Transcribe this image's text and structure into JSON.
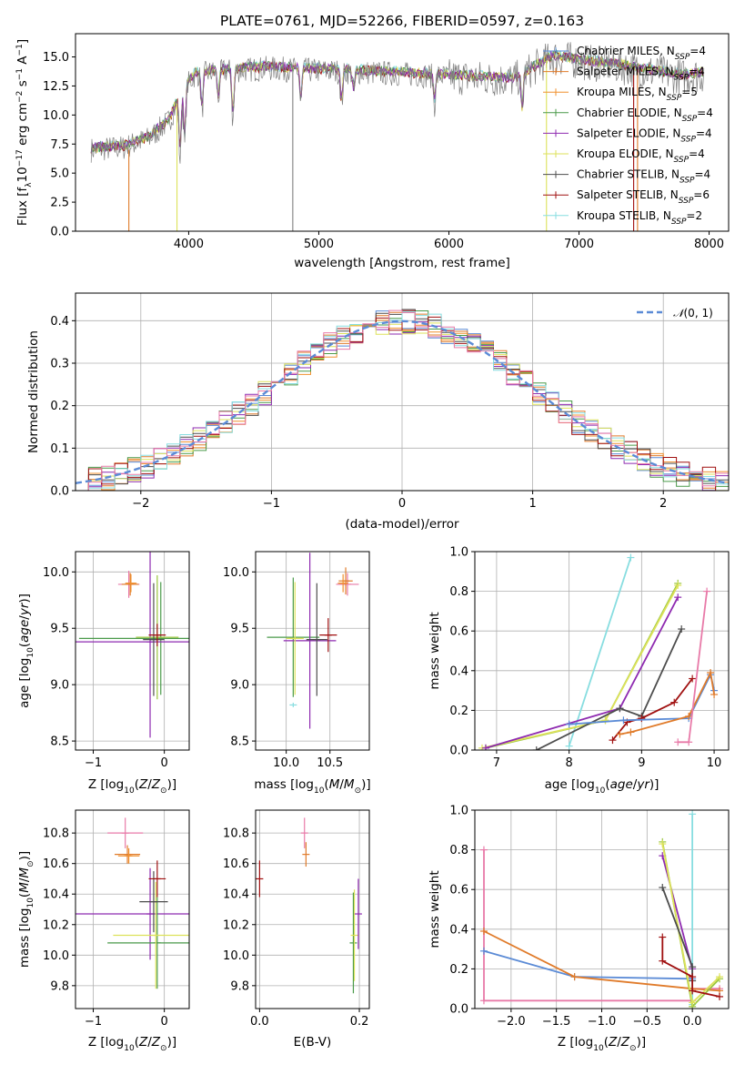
{
  "colors": {
    "chabrier_miles": "#5b8bd6",
    "salpeter_miles": "#e07b2a",
    "kroupa_miles": "#f0902e",
    "chabrier_elodie": "#4a9a4a",
    "salpeter_elodie": "#8e2ab0",
    "kroupa_elodie": "#dde25a",
    "chabrier_stelib": "#4d4d4d",
    "salpeter_stelib": "#a01010",
    "kroupa_stelib": "#87dde0",
    "pink": "#e87aa8",
    "green2": "#9ac63e",
    "data": "#7f7f7f"
  },
  "chart_data": [
    {
      "id": "spectrum",
      "type": "line",
      "title": "PLATE=0761, MJD=52266, FIBERID=0597, z=0.163",
      "xlabel": "wavelength [Angstrom, rest frame]",
      "ylabel": "Flux [f_λ 10^-17 erg cm^-2 s^-1 A^-1]",
      "xlim": [
        3130,
        8150
      ],
      "ylim": [
        0,
        17
      ],
      "xticks": [
        4000,
        5000,
        6000,
        7000,
        8000
      ],
      "yticks": [
        0.0,
        2.5,
        5.0,
        7.5,
        10.0,
        12.5,
        15.0
      ],
      "legend": [
        {
          "label": "Chabrier MILES, N_SSP=4",
          "color": "#5b8bd6"
        },
        {
          "label": "Salpeter MILES, N_SSP=4",
          "color": "#e07b2a"
        },
        {
          "label": "Kroupa MILES, N_SSP=5",
          "color": "#f0902e"
        },
        {
          "label": "Chabrier ELODIE, N_SSP=4",
          "color": "#4a9a4a"
        },
        {
          "label": "Salpeter ELODIE, N_SSP=4",
          "color": "#8e2ab0"
        },
        {
          "label": "Kroupa ELODIE, N_SSP=4",
          "color": "#dde25a"
        },
        {
          "label": "Chabrier STELIB, N_SSP=4",
          "color": "#4d4d4d"
        },
        {
          "label": "Salpeter STELIB, N_SSP=6",
          "color": "#a01010"
        },
        {
          "label": "Kroupa STELIB, N_SSP=2",
          "color": "#87dde0"
        }
      ],
      "continuum": [
        [
          3250,
          7.0
        ],
        [
          3500,
          7.2
        ],
        [
          3700,
          8.0
        ],
        [
          3850,
          9.5
        ],
        [
          3950,
          12.0
        ],
        [
          4050,
          13.5
        ],
        [
          4300,
          13.8
        ],
        [
          4600,
          14.0
        ],
        [
          5000,
          13.8
        ],
        [
          5500,
          13.6
        ],
        [
          6000,
          13.3
        ],
        [
          6500,
          13.0
        ],
        [
          6800,
          15.0
        ],
        [
          7000,
          14.6
        ],
        [
          7300,
          14.2
        ],
        [
          7500,
          13.8
        ],
        [
          7800,
          13.3
        ],
        [
          7950,
          13.5
        ]
      ],
      "dips": [
        [
          3934,
          5.5
        ],
        [
          3969,
          5.0
        ],
        [
          4102,
          3.5
        ],
        [
          4227,
          2.5
        ],
        [
          4340,
          4.5
        ],
        [
          4861,
          3.0
        ],
        [
          5175,
          3.0
        ],
        [
          5270,
          1.8
        ],
        [
          5890,
          2.5
        ],
        [
          6563,
          3.5
        ]
      ],
      "spikes": [
        [
          4800,
          0
        ],
        [
          7450,
          0
        ],
        [
          3910,
          0
        ],
        [
          6750,
          0
        ]
      ]
    },
    {
      "id": "residual_hist",
      "type": "line",
      "xlabel": "(data-model)/error",
      "ylabel": "Normed distribution",
      "xlim": [
        -2.5,
        2.5
      ],
      "ylim": [
        0,
        0.465
      ],
      "xticks": [
        -2,
        -1,
        0,
        1,
        2
      ],
      "yticks": [
        0.0,
        0.1,
        0.2,
        0.3,
        0.4
      ],
      "legend": [
        {
          "label": "N(0,1)",
          "color": "#5b8bd6"
        }
      ],
      "bin_width": 0.1
    },
    {
      "id": "age_vs_Z",
      "type": "scatter",
      "xlabel": "Z [log10(Z/Z_sun)]",
      "ylabel": "age [log10(age/yr)]",
      "xlim": [
        -1.25,
        0.35
      ],
      "ylim": [
        8.42,
        10.18
      ],
      "xticks": [
        -1,
        0
      ],
      "yticks": [
        8.5,
        9.0,
        9.5,
        10.0
      ],
      "points": [
        {
          "x": -0.5,
          "y": 9.89,
          "xerr": 0.15,
          "yerr": 0.12,
          "c": "#e87aa8"
        },
        {
          "x": -0.48,
          "y": 9.89,
          "xerr": 0.12,
          "yerr": 0.1,
          "c": "#e07b2a"
        },
        {
          "x": -0.47,
          "y": 9.9,
          "xerr": 0.08,
          "yerr": 0.08,
          "c": "#f0902e"
        },
        {
          "x": -0.05,
          "y": 9.41,
          "xerr": 1.15,
          "yerr": 0.5,
          "c": "#4a9a4a"
        },
        {
          "x": -0.2,
          "y": 9.38,
          "xerr": 1.1,
          "yerr": 0.85,
          "c": "#8e2ab0"
        },
        {
          "x": -0.1,
          "y": 9.42,
          "xerr": 0.3,
          "yerr": 0.55,
          "c": "#9ac63e"
        },
        {
          "x": -0.15,
          "y": 9.4,
          "xerr": 0.15,
          "yerr": 0.5,
          "c": "#4d4d4d"
        },
        {
          "x": -0.1,
          "y": 9.44,
          "xerr": 0.12,
          "yerr": 0.1,
          "c": "#a01010"
        }
      ]
    },
    {
      "id": "age_vs_mass",
      "type": "scatter",
      "xlabel": "mass [log10(M/M_sun)]",
      "ylabel": "",
      "xlim": [
        9.65,
        10.95
      ],
      "ylim": [
        8.42,
        10.18
      ],
      "xticks": [
        10.0,
        10.5
      ],
      "yticks": [
        8.5,
        9.0,
        9.5,
        10.0
      ],
      "points": [
        {
          "x": 10.7,
          "y": 9.89,
          "xerr": 0.13,
          "yerr": 0.1,
          "c": "#e87aa8"
        },
        {
          "x": 10.68,
          "y": 9.92,
          "xerr": 0.08,
          "yerr": 0.12,
          "c": "#e07b2a"
        },
        {
          "x": 10.65,
          "y": 9.9,
          "xerr": 0.06,
          "yerr": 0.08,
          "c": "#f0902e"
        },
        {
          "x": 10.08,
          "y": 9.42,
          "xerr": 0.3,
          "yerr": 0.53,
          "c": "#4a9a4a"
        },
        {
          "x": 10.27,
          "y": 9.39,
          "xerr": 0.3,
          "yerr": 0.78,
          "c": "#8e2ab0"
        },
        {
          "x": 10.1,
          "y": 9.41,
          "xerr": 0.1,
          "yerr": 0.5,
          "c": "#dde25a"
        },
        {
          "x": 10.35,
          "y": 9.4,
          "xerr": 0.12,
          "yerr": 0.5,
          "c": "#4d4d4d"
        },
        {
          "x": 10.48,
          "y": 9.44,
          "xerr": 0.1,
          "yerr": 0.15,
          "c": "#a01010"
        },
        {
          "x": 10.08,
          "y": 8.82,
          "xerr": 0.0,
          "yerr": 0.02,
          "c": "#87dde0"
        }
      ]
    },
    {
      "id": "mass_weight_vs_age",
      "type": "line",
      "xlabel": "age [log10(age/yr)]",
      "ylabel": "mass weight",
      "xlim": [
        6.7,
        10.2
      ],
      "ylim": [
        0,
        1
      ],
      "xticks": [
        7,
        8,
        9,
        10
      ],
      "yticks": [
        0.0,
        0.2,
        0.4,
        0.6,
        0.8,
        1.0
      ],
      "series": [
        {
          "c": "#87dde0",
          "pts": [
            [
              8.0,
              0.02
            ],
            [
              8.85,
              0.97
            ]
          ]
        },
        {
          "c": "#9ac63e",
          "pts": [
            [
              6.85,
              0.01
            ],
            [
              8.5,
              0.15
            ],
            [
              9.5,
              0.84
            ]
          ]
        },
        {
          "c": "#dde25a",
          "pts": [
            [
              6.8,
              0.01
            ],
            [
              8.5,
              0.15
            ],
            [
              9.5,
              0.83
            ]
          ]
        },
        {
          "c": "#8e2ab0",
          "pts": [
            [
              6.85,
              0.01
            ],
            [
              8.7,
              0.21
            ],
            [
              9.5,
              0.77
            ]
          ]
        },
        {
          "c": "#4d4d4d",
          "pts": [
            [
              7.55,
              0.0
            ],
            [
              8.7,
              0.21
            ],
            [
              9.0,
              0.17
            ],
            [
              9.55,
              0.61
            ]
          ]
        },
        {
          "c": "#a01010",
          "pts": [
            [
              8.6,
              0.05
            ],
            [
              8.8,
              0.14
            ],
            [
              9.0,
              0.16
            ],
            [
              9.45,
              0.24
            ],
            [
              9.7,
              0.36
            ]
          ]
        },
        {
          "c": "#5b8bd6",
          "pts": [
            [
              8.0,
              0.13
            ],
            [
              8.75,
              0.15
            ],
            [
              9.65,
              0.16
            ],
            [
              9.95,
              0.38
            ],
            [
              10.0,
              0.3
            ]
          ]
        },
        {
          "c": "#e07b2a",
          "pts": [
            [
              8.7,
              0.08
            ],
            [
              8.85,
              0.09
            ],
            [
              9.65,
              0.17
            ],
            [
              9.95,
              0.39
            ],
            [
              10.0,
              0.28
            ]
          ]
        },
        {
          "c": "#e87aa8",
          "pts": [
            [
              9.5,
              0.04
            ],
            [
              9.65,
              0.04
            ],
            [
              9.9,
              0.8
            ]
          ]
        }
      ]
    },
    {
      "id": "mass_vs_Z",
      "type": "scatter",
      "xlabel": "Z [log10(Z/Z_sun)]",
      "ylabel": "mass [log10(M/M_sun)]",
      "xlim": [
        -1.25,
        0.35
      ],
      "ylim": [
        9.65,
        10.95
      ],
      "xticks": [
        -1,
        0
      ],
      "yticks": [
        9.8,
        10.0,
        10.2,
        10.4,
        10.6,
        10.8
      ],
      "points": [
        {
          "x": -0.55,
          "y": 10.8,
          "xerr": 0.25,
          "yerr": 0.1,
          "c": "#e87aa8"
        },
        {
          "x": -0.52,
          "y": 10.66,
          "xerr": 0.18,
          "yerr": 0.06,
          "c": "#e07b2a"
        },
        {
          "x": -0.5,
          "y": 10.65,
          "xerr": 0.15,
          "yerr": 0.05,
          "c": "#f0902e"
        },
        {
          "x": -0.2,
          "y": 10.27,
          "xerr": 1.05,
          "yerr": 0.3,
          "c": "#8e2ab0"
        },
        {
          "x": -0.1,
          "y": 10.08,
          "xerr": 0.7,
          "yerr": 0.3,
          "c": "#4a9a4a"
        },
        {
          "x": -0.12,
          "y": 10.13,
          "xerr": 0.6,
          "yerr": 0.35,
          "c": "#dde25a"
        },
        {
          "x": -0.15,
          "y": 10.35,
          "xerr": 0.2,
          "yerr": 0.2,
          "c": "#4d4d4d"
        },
        {
          "x": -0.1,
          "y": 10.5,
          "xerr": 0.12,
          "yerr": 0.12,
          "c": "#a01010"
        }
      ]
    },
    {
      "id": "mass_vs_EBV",
      "type": "scatter",
      "xlabel": "E(B-V)",
      "ylabel": "",
      "xlim": [
        -0.008,
        0.22
      ],
      "ylim": [
        9.65,
        10.95
      ],
      "xticks": [
        0.0,
        0.2
      ],
      "yticks": [
        9.8,
        10.0,
        10.2,
        10.4,
        10.6,
        10.8
      ],
      "points": [
        {
          "x": 0.0,
          "y": 10.5,
          "xerr": 0,
          "yerr": 0.12,
          "c": "#a01010"
        },
        {
          "x": 0.09,
          "y": 10.8,
          "xerr": 0,
          "yerr": 0.1,
          "c": "#e87aa8"
        },
        {
          "x": 0.093,
          "y": 10.66,
          "xerr": 0,
          "yerr": 0.08,
          "c": "#e07b2a"
        },
        {
          "x": 0.188,
          "y": 10.08,
          "xerr": 0,
          "yerr": 0.33,
          "c": "#4a9a4a"
        },
        {
          "x": 0.19,
          "y": 10.13,
          "xerr": 0,
          "yerr": 0.3,
          "c": "#dde25a"
        },
        {
          "x": 0.198,
          "y": 10.27,
          "xerr": 0,
          "yerr": 0.23,
          "c": "#8e2ab0"
        }
      ]
    },
    {
      "id": "mass_weight_vs_Z",
      "type": "line",
      "xlabel": "Z [log10(Z/Z_sun)]",
      "ylabel": "mass weight",
      "xlim": [
        -2.4,
        0.4
      ],
      "ylim": [
        0,
        1
      ],
      "xticks": [
        -2.0,
        -1.5,
        -1.0,
        -0.5,
        0.0
      ],
      "yticks": [
        0.0,
        0.2,
        0.4,
        0.6,
        0.8,
        1.0
      ],
      "series": [
        {
          "c": "#e87aa8",
          "pts": [
            [
              -2.3,
              0.8
            ],
            [
              -2.3,
              0.04
            ],
            [
              0.0,
              0.04
            ],
            [
              0.0,
              0.1
            ],
            [
              0.3,
              0.1
            ]
          ]
        },
        {
          "c": "#5b8bd6",
          "pts": [
            [
              -2.3,
              0.29
            ],
            [
              -1.3,
              0.16
            ],
            [
              0.0,
              0.15
            ]
          ]
        },
        {
          "c": "#e07b2a",
          "pts": [
            [
              -2.3,
              0.39
            ],
            [
              -1.3,
              0.16
            ],
            [
              0.0,
              0.1
            ],
            [
              0.3,
              0.09
            ]
          ]
        },
        {
          "c": "#87dde0",
          "pts": [
            [
              0.0,
              0.98
            ],
            [
              0.0,
              0.02
            ]
          ]
        },
        {
          "c": "#8e2ab0",
          "pts": [
            [
              -0.33,
              0.77
            ],
            [
              0.0,
              0.2
            ]
          ]
        },
        {
          "c": "#9ac63e",
          "pts": [
            [
              -0.33,
              0.84
            ],
            [
              0.0,
              0.01
            ],
            [
              0.3,
              0.15
            ]
          ]
        },
        {
          "c": "#dde25a",
          "pts": [
            [
              -0.33,
              0.83
            ],
            [
              0.0,
              0.03
            ],
            [
              0.3,
              0.16
            ]
          ]
        },
        {
          "c": "#4d4d4d",
          "pts": [
            [
              -0.33,
              0.61
            ],
            [
              0.0,
              0.21
            ],
            [
              0.0,
              0.14
            ]
          ]
        },
        {
          "c": "#a01010",
          "pts": [
            [
              -0.33,
              0.36
            ],
            [
              -0.33,
              0.24
            ],
            [
              0.0,
              0.16
            ],
            [
              0.0,
              0.09
            ],
            [
              0.3,
              0.06
            ]
          ]
        }
      ]
    }
  ]
}
